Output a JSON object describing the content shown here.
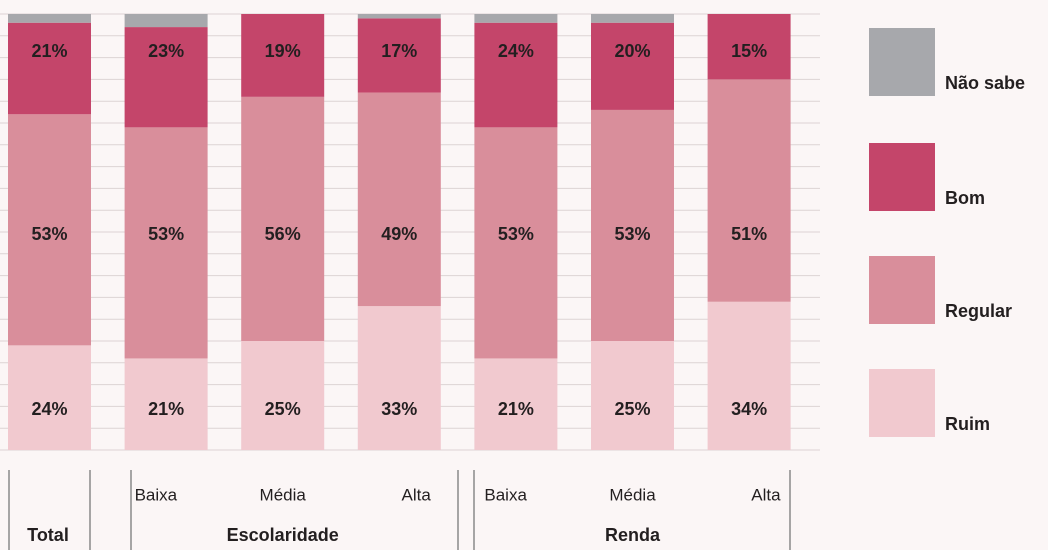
{
  "chart_data": {
    "type": "bar",
    "stacked": true,
    "categories": [
      "Total",
      "Baixa",
      "Média",
      "Alta",
      "Baixa",
      "Média",
      "Alta"
    ],
    "groups": [
      "Escolaridade",
      "Renda"
    ],
    "series": [
      {
        "name": "Ruim",
        "color": "#f1c9cf",
        "values": [
          24,
          21,
          25,
          33,
          21,
          25,
          34
        ],
        "value_labels": [
          "24%",
          "21%",
          "25%",
          "33%",
          "21%",
          "25%",
          "34%"
        ]
      },
      {
        "name": "Regular",
        "color": "#d98e9b",
        "values": [
          53,
          53,
          56,
          49,
          53,
          53,
          51
        ],
        "value_labels": [
          "53%",
          "53%",
          "56%",
          "49%",
          "53%",
          "53%",
          "51%"
        ]
      },
      {
        "name": "Bom",
        "color": "#c4456a",
        "values": [
          21,
          23,
          19,
          17,
          24,
          20,
          15
        ],
        "value_labels": [
          "21%",
          "23%",
          "19%",
          "17%",
          "24%",
          "20%",
          "15%"
        ]
      },
      {
        "name": "Não sabe",
        "color": "#a7a8ac",
        "values": [
          2,
          3,
          0,
          1,
          2,
          2,
          0
        ]
      }
    ],
    "ylim": [
      0,
      100
    ],
    "yticks": [
      0,
      5,
      10,
      15,
      20,
      25,
      30,
      35,
      40,
      45,
      50,
      55,
      60,
      65,
      70,
      75,
      80,
      85,
      90,
      95,
      100
    ],
    "grid": true,
    "legend": "right"
  }
}
